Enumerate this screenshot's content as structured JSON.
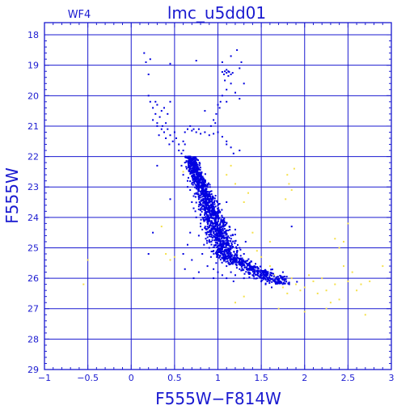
{
  "chart_data": {
    "type": "scatter",
    "title": "lmc_u5dd01",
    "subtitle": "WF4",
    "xlabel": "F555W−F814W",
    "ylabel": "F555W",
    "xlim": [
      -1,
      3
    ],
    "ylim": [
      29,
      17.6
    ],
    "y_inverted": true,
    "grid": true,
    "x_ticks": [
      -1,
      -0.5,
      0,
      0.5,
      1,
      1.5,
      2,
      2.5,
      3
    ],
    "x_tick_labels": [
      "−1",
      "−0.5",
      "0",
      "0.5",
      "1",
      "1.5",
      "2",
      "2.5",
      "3"
    ],
    "y_ticks": [
      18,
      19,
      20,
      21,
      22,
      23,
      24,
      25,
      26,
      27,
      28,
      29
    ],
    "y_tick_labels": [
      "18",
      "19",
      "20",
      "21",
      "22",
      "23",
      "24",
      "25",
      "26",
      "27",
      "28",
      "29"
    ],
    "colors": {
      "axes": "#1a1ad0",
      "series_main": "#0000e0",
      "series_faint": "#f5e04a"
    },
    "series": [
      {
        "color": "#0000e0",
        "points": [
          [
            0.15,
            18.6
          ],
          [
            0.17,
            18.9
          ],
          [
            0.2,
            19.3
          ],
          [
            0.22,
            18.8
          ],
          [
            0.45,
            18.95
          ],
          [
            0.75,
            18.85
          ],
          [
            0.85,
            20.5
          ],
          [
            1.05,
            18.9
          ],
          [
            1.15,
            18.7
          ],
          [
            1.22,
            18.5
          ],
          [
            1.25,
            19.1
          ],
          [
            1.27,
            18.9
          ],
          [
            1.3,
            19.6
          ],
          [
            1.08,
            19.2
          ],
          [
            1.1,
            19.25
          ],
          [
            1.12,
            19.2
          ],
          [
            1.15,
            19.3
          ],
          [
            1.1,
            19.15
          ],
          [
            1.13,
            19.22
          ],
          [
            1.07,
            19.3
          ],
          [
            1.12,
            19.35
          ],
          [
            1.17,
            19.25
          ],
          [
            1.05,
            19.22
          ],
          [
            1.05,
            20.0
          ],
          [
            1.08,
            19.5
          ],
          [
            1.1,
            19.8
          ],
          [
            1.15,
            19.6
          ],
          [
            1.0,
            20.3
          ],
          [
            1.03,
            20.2
          ],
          [
            0.98,
            20.6
          ],
          [
            0.95,
            20.8
          ],
          [
            1.02,
            20.4
          ],
          [
            0.92,
            21.0
          ],
          [
            0.97,
            20.9
          ],
          [
            1.1,
            20.2
          ],
          [
            1.2,
            19.9
          ],
          [
            1.25,
            20.1
          ],
          [
            0.2,
            20.0
          ],
          [
            0.22,
            20.2
          ],
          [
            0.25,
            20.4
          ],
          [
            0.28,
            20.6
          ],
          [
            0.3,
            20.3
          ],
          [
            0.33,
            20.7
          ],
          [
            0.35,
            20.5
          ],
          [
            0.25,
            20.8
          ],
          [
            0.3,
            20.9
          ],
          [
            0.38,
            20.4
          ],
          [
            0.42,
            20.6
          ],
          [
            0.45,
            20.2
          ],
          [
            0.28,
            20.2
          ],
          [
            0.4,
            20.9
          ],
          [
            0.3,
            21.0
          ],
          [
            0.35,
            21.1
          ],
          [
            0.32,
            21.3
          ],
          [
            0.38,
            21.2
          ],
          [
            0.4,
            21.4
          ],
          [
            0.42,
            21.1
          ],
          [
            0.45,
            21.3
          ],
          [
            0.48,
            21.5
          ],
          [
            0.5,
            21.2
          ],
          [
            0.52,
            21.4
          ],
          [
            0.55,
            21.6
          ],
          [
            0.36,
            21.0
          ],
          [
            0.44,
            21.6
          ],
          [
            0.55,
            21.8
          ],
          [
            0.58,
            21.9
          ],
          [
            0.6,
            21.5
          ],
          [
            0.62,
            21.2
          ],
          [
            0.65,
            21.1
          ],
          [
            0.68,
            21.0
          ],
          [
            0.7,
            21.15
          ],
          [
            0.72,
            21.1
          ],
          [
            0.75,
            21.2
          ],
          [
            0.78,
            21.1
          ],
          [
            0.8,
            21.25
          ],
          [
            0.85,
            21.2
          ],
          [
            0.9,
            21.3
          ],
          [
            0.95,
            21.25
          ],
          [
            1.0,
            21.2
          ],
          [
            1.05,
            21.35
          ],
          [
            1.1,
            21.5
          ],
          [
            1.15,
            21.7
          ],
          [
            1.18,
            21.9
          ],
          [
            0.62,
            21.6
          ],
          [
            0.6,
            21.8
          ],
          [
            0.63,
            22.0
          ],
          [
            0.62,
            22.2
          ],
          [
            0.64,
            22.4
          ],
          [
            0.6,
            22.6
          ],
          [
            0.65,
            22.8
          ],
          [
            0.68,
            22.1
          ],
          [
            0.7,
            22.3
          ],
          [
            0.72,
            22.5
          ],
          [
            0.66,
            22.7
          ],
          [
            0.7,
            22.9
          ],
          [
            0.74,
            22.7
          ],
          [
            0.78,
            22.4
          ],
          [
            0.76,
            22.9
          ],
          [
            0.65,
            23.0
          ],
          [
            0.58,
            22.3
          ],
          [
            0.68,
            23.1
          ],
          [
            0.72,
            23.3
          ],
          [
            0.7,
            23.5
          ],
          [
            0.75,
            23.2
          ],
          [
            0.78,
            23.4
          ],
          [
            0.8,
            23.6
          ],
          [
            0.74,
            23.8
          ],
          [
            0.76,
            23.0
          ],
          [
            0.82,
            23.1
          ],
          [
            0.8,
            23.9
          ],
          [
            0.72,
            23.7
          ],
          [
            0.84,
            23.5
          ],
          [
            0.75,
            24.0
          ],
          [
            0.8,
            24.2
          ],
          [
            0.85,
            24.1
          ],
          [
            0.82,
            24.4
          ],
          [
            0.88,
            24.3
          ],
          [
            0.9,
            24.0
          ],
          [
            0.78,
            24.6
          ],
          [
            0.92,
            24.5
          ],
          [
            0.86,
            24.7
          ],
          [
            0.95,
            24.2
          ],
          [
            0.98,
            24.6
          ],
          [
            0.84,
            24.9
          ],
          [
            0.9,
            24.8
          ],
          [
            0.8,
            24.3
          ],
          [
            0.9,
            25.0
          ],
          [
            0.95,
            25.1
          ],
          [
            1.0,
            25.0
          ],
          [
            1.02,
            25.3
          ],
          [
            1.05,
            25.2
          ],
          [
            1.08,
            25.4
          ],
          [
            0.92,
            25.3
          ],
          [
            0.98,
            25.5
          ],
          [
            1.12,
            25.5
          ],
          [
            1.15,
            25.3
          ],
          [
            1.1,
            25.6
          ],
          [
            0.88,
            25.6
          ],
          [
            0.95,
            25.7
          ],
          [
            1.2,
            25.4
          ],
          [
            1.0,
            25.8
          ],
          [
            1.05,
            25.9
          ],
          [
            1.1,
            26.0
          ],
          [
            1.15,
            25.8
          ],
          [
            1.2,
            25.9
          ],
          [
            1.25,
            25.7
          ],
          [
            1.3,
            26.0
          ],
          [
            1.35,
            25.8
          ],
          [
            1.4,
            25.9
          ],
          [
            1.45,
            26.0
          ],
          [
            1.5,
            26.1
          ],
          [
            1.55,
            26.2
          ],
          [
            1.6,
            26.0
          ],
          [
            1.62,
            26.3
          ],
          [
            0.95,
            26.0
          ],
          [
            1.18,
            26.1
          ],
          [
            0.82,
            25.2
          ],
          [
            0.78,
            25.8
          ],
          [
            0.72,
            26.0
          ],
          [
            0.7,
            25.4
          ],
          [
            0.65,
            24.9
          ],
          [
            0.68,
            24.5
          ],
          [
            0.6,
            25.2
          ],
          [
            0.62,
            25.7
          ],
          [
            1.25,
            25.0
          ],
          [
            1.3,
            25.2
          ],
          [
            1.32,
            24.8
          ],
          [
            1.15,
            24.6
          ],
          [
            1.2,
            24.4
          ],
          [
            1.1,
            24.2
          ],
          [
            1.05,
            24.0
          ],
          [
            1.0,
            23.6
          ],
          [
            0.25,
            24.5
          ],
          [
            0.45,
            23.4
          ],
          [
            0.3,
            22.3
          ],
          [
            1.1,
            23.5
          ],
          [
            1.1,
            21.6
          ],
          [
            1.25,
            21.8
          ],
          [
            0.2,
            25.2
          ],
          [
            1.85,
            24.3
          ],
          [
            1.75,
            25.8
          ]
        ]
      },
      {
        "color": "#f5e04a",
        "points": [
          [
            -0.5,
            25.4
          ],
          [
            -0.55,
            26.2
          ],
          [
            0.35,
            24.3
          ],
          [
            0.4,
            25.2
          ],
          [
            0.45,
            25.4
          ],
          [
            0.5,
            25.3
          ],
          [
            0.6,
            22.5
          ],
          [
            1.1,
            22.6
          ],
          [
            1.15,
            22.3
          ],
          [
            1.2,
            22.9
          ],
          [
            1.3,
            23.5
          ],
          [
            1.35,
            23.2
          ],
          [
            1.4,
            24.5
          ],
          [
            1.45,
            25.1
          ],
          [
            1.5,
            25.3
          ],
          [
            1.6,
            25.6
          ],
          [
            1.65,
            25.9
          ],
          [
            1.7,
            26.1
          ],
          [
            1.75,
            26.3
          ],
          [
            1.8,
            26.5
          ],
          [
            1.85,
            26.0
          ],
          [
            1.9,
            26.2
          ],
          [
            1.95,
            26.4
          ],
          [
            1.8,
            22.6
          ],
          [
            1.82,
            22.9
          ],
          [
            1.85,
            23.1
          ],
          [
            1.78,
            23.4
          ],
          [
            1.88,
            22.4
          ],
          [
            2.0,
            26.3
          ],
          [
            2.05,
            25.9
          ],
          [
            2.1,
            26.1
          ],
          [
            2.15,
            26.5
          ],
          [
            2.2,
            26.0
          ],
          [
            2.25,
            26.4
          ],
          [
            2.3,
            26.8
          ],
          [
            2.35,
            26.2
          ],
          [
            2.4,
            26.7
          ],
          [
            2.45,
            25.6
          ],
          [
            2.5,
            26.1
          ],
          [
            2.55,
            25.8
          ],
          [
            2.6,
            26.4
          ],
          [
            2.65,
            26.2
          ],
          [
            2.7,
            27.2
          ],
          [
            2.0,
            27.1
          ],
          [
            1.7,
            27.0
          ],
          [
            1.3,
            26.6
          ],
          [
            1.2,
            26.8
          ],
          [
            2.25,
            27.0
          ],
          [
            2.4,
            25.0
          ],
          [
            2.35,
            24.7
          ],
          [
            2.45,
            24.8
          ],
          [
            2.5,
            24.2
          ],
          [
            2.9,
            25.6
          ],
          [
            2.75,
            26.1
          ],
          [
            1.6,
            24.8
          ]
        ]
      }
    ]
  }
}
